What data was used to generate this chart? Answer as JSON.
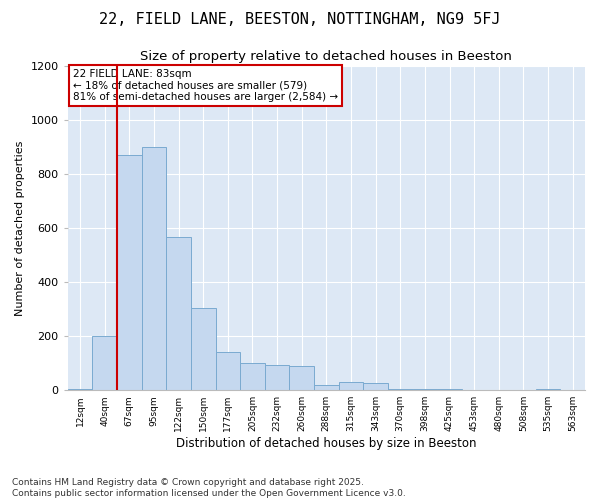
{
  "title": "22, FIELD LANE, BEESTON, NOTTINGHAM, NG9 5FJ",
  "subtitle": "Size of property relative to detached houses in Beeston",
  "xlabel": "Distribution of detached houses by size in Beeston",
  "ylabel": "Number of detached properties",
  "categories": [
    "12sqm",
    "40sqm",
    "67sqm",
    "95sqm",
    "122sqm",
    "150sqm",
    "177sqm",
    "205sqm",
    "232sqm",
    "260sqm",
    "288sqm",
    "315sqm",
    "343sqm",
    "370sqm",
    "398sqm",
    "425sqm",
    "453sqm",
    "480sqm",
    "508sqm",
    "535sqm",
    "563sqm"
  ],
  "values": [
    5,
    200,
    870,
    900,
    565,
    305,
    140,
    100,
    95,
    90,
    20,
    30,
    28,
    5,
    5,
    5,
    0,
    0,
    0,
    5,
    0
  ],
  "bar_color": "#c5d8ef",
  "bar_edge_color": "#7aaad0",
  "bg_color": "#dde8f5",
  "grid_color": "#ffffff",
  "annotation_box_color": "#cc0000",
  "vline_color": "#cc0000",
  "vline_x": 1.5,
  "annotation_text": "22 FIELD LANE: 83sqm\n← 18% of detached houses are smaller (579)\n81% of semi-detached houses are larger (2,584) →",
  "ylim": [
    0,
    1200
  ],
  "yticks": [
    0,
    200,
    400,
    600,
    800,
    1000,
    1200
  ],
  "footer": "Contains HM Land Registry data © Crown copyright and database right 2025.\nContains public sector information licensed under the Open Government Licence v3.0.",
  "title_fontsize": 11,
  "subtitle_fontsize": 9.5,
  "annotation_fontsize": 7.5,
  "footer_fontsize": 6.5,
  "ylabel_fontsize": 8,
  "xlabel_fontsize": 8.5
}
